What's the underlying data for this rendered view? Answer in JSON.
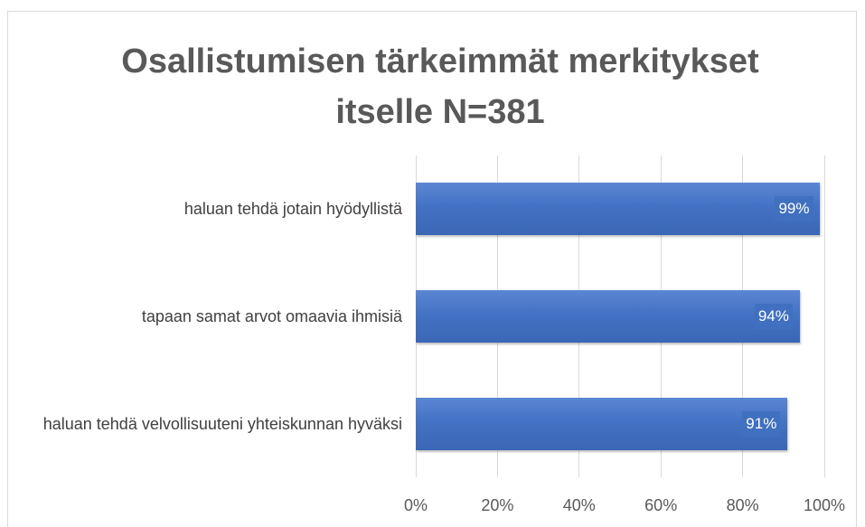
{
  "chart_data": {
    "type": "bar",
    "orientation": "horizontal",
    "title": "Osallistumisen tärkeimmät merkitykset itselle N=381",
    "categories": [
      "haluan tehdä jotain hyödyllistä",
      "tapaan samat arvot omaavia ihmisiä",
      "haluan tehdä velvollisuuteni yhteiskunnan hyväksi"
    ],
    "values": [
      99,
      94,
      91
    ],
    "value_labels": [
      "99%",
      "94%",
      "91%"
    ],
    "color": "#4472c4",
    "xlim": [
      0,
      100
    ],
    "xticks": [
      {
        "value": 0,
        "label": "0%"
      },
      {
        "value": 20,
        "label": "20%"
      },
      {
        "value": 40,
        "label": "40%"
      },
      {
        "value": 60,
        "label": "60%"
      },
      {
        "value": 80,
        "label": "80%"
      },
      {
        "value": 100,
        "label": "100%"
      }
    ],
    "grid": true
  }
}
